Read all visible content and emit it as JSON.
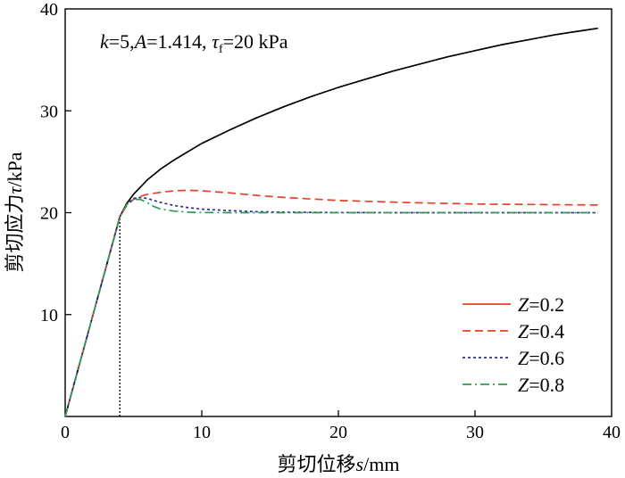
{
  "chart_data": {
    "type": "line",
    "annotation": {
      "k_label": "k",
      "k_value": "=5,",
      "a_label": "A",
      "a_value": "=1.414, ",
      "tau_symbol": "τ",
      "tau_sub": "f",
      "tau_value": "=20 kPa"
    },
    "xlabel_prefix": "剪切位移",
    "xlabel_var": "s",
    "xlabel_unit": "/mm",
    "ylabel_prefix": "剪切应力",
    "ylabel_var": "τ",
    "ylabel_unit": "/kPa",
    "xlim": [
      0,
      40
    ],
    "ylim": [
      0,
      40
    ],
    "xticks": [
      0,
      10,
      20,
      30,
      40
    ],
    "yticks": [
      10,
      20,
      30,
      40
    ],
    "reference_line": {
      "x": 4,
      "y": [
        0,
        19.6
      ]
    },
    "legend_position": "bottom-right",
    "series": [
      {
        "name": "Z=0.2",
        "color": "#000000",
        "dash": "solid",
        "x": [
          0,
          4,
          4.5,
          5,
          6,
          7,
          8,
          10,
          12,
          14,
          16,
          18,
          20,
          22,
          24,
          26,
          28,
          30,
          32,
          34,
          36,
          38,
          39
        ],
        "y": [
          0,
          19.6,
          20.9,
          21.8,
          23.2,
          24.3,
          25.2,
          26.8,
          28.1,
          29.3,
          30.4,
          31.4,
          32.3,
          33.1,
          33.9,
          34.6,
          35.3,
          35.9,
          36.5,
          37.0,
          37.5,
          37.9,
          38.1
        ]
      },
      {
        "name": "Z=0.4",
        "color": "#e8402a",
        "dash": "dashed",
        "x": [
          0,
          4,
          4.5,
          5,
          5.5,
          6,
          7,
          8,
          9,
          10,
          11,
          12,
          14,
          16,
          18,
          20,
          25,
          30,
          35,
          39
        ],
        "y": [
          0,
          19.6,
          20.7,
          21.3,
          21.6,
          21.8,
          22.0,
          22.15,
          22.2,
          22.15,
          22.05,
          21.95,
          21.7,
          21.5,
          21.35,
          21.2,
          21.0,
          20.85,
          20.8,
          20.75
        ]
      },
      {
        "name": "Z=0.6",
        "color": "#2b2f8f",
        "dash": "dotted",
        "x": [
          0,
          4,
          4.5,
          5,
          5.5,
          6,
          6.5,
          7,
          8,
          9,
          10,
          12,
          14,
          16,
          20,
          25,
          30,
          35,
          39
        ],
        "y": [
          0,
          19.6,
          20.8,
          21.4,
          21.5,
          21.4,
          21.2,
          21.0,
          20.7,
          20.5,
          20.35,
          20.2,
          20.1,
          20.05,
          20.02,
          20.0,
          20.0,
          20.0,
          20.0
        ]
      },
      {
        "name": "Z=0.8",
        "color": "#2e9a5a",
        "dash": "dashdot",
        "x": [
          0,
          4,
          4.5,
          5,
          5.5,
          6,
          6.5,
          7,
          8,
          9,
          10,
          12,
          14,
          20,
          25,
          30,
          35,
          39
        ],
        "y": [
          0,
          19.6,
          20.8,
          21.3,
          21.3,
          21.0,
          20.6,
          20.35,
          20.15,
          20.05,
          20.02,
          20.0,
          20.0,
          20.0,
          20.0,
          20.0,
          20.0,
          20.0
        ]
      }
    ]
  }
}
